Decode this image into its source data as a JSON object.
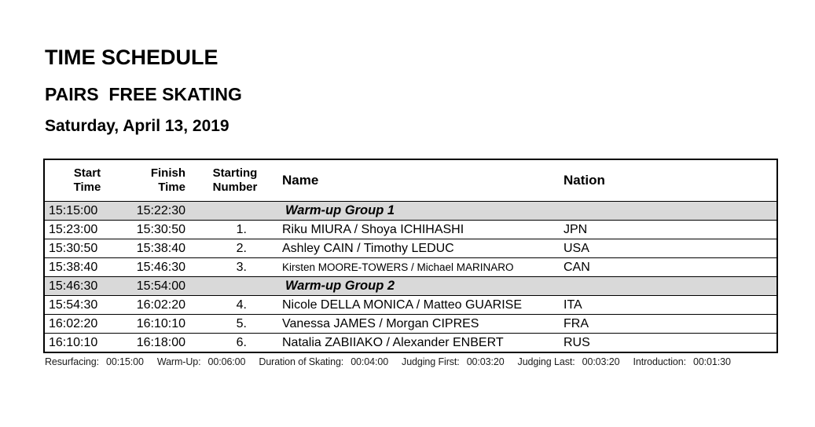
{
  "page": {
    "title": "TIME SCHEDULE",
    "subtitle": "PAIRS  FREE SKATING",
    "date": "Saturday, April 13, 2019"
  },
  "table": {
    "headers": {
      "start_time": [
        "Start",
        "Time"
      ],
      "finish_time": [
        "Finish",
        "Time"
      ],
      "starting_number": [
        "Starting",
        "Number"
      ],
      "name": "Name",
      "nation": "Nation"
    },
    "rows": [
      {
        "type": "group",
        "start": "15:15:00",
        "finish": "15:22:30",
        "label": "Warm-up Group 1"
      },
      {
        "type": "entry",
        "start": "15:23:00",
        "finish": "15:30:50",
        "number": "1.",
        "name": "Riku MIURA / Shoya ICHIHASHI",
        "nation": "JPN"
      },
      {
        "type": "entry",
        "start": "15:30:50",
        "finish": "15:38:40",
        "number": "2.",
        "name": "Ashley CAIN / Timothy LEDUC",
        "nation": "USA"
      },
      {
        "type": "entry",
        "start": "15:38:40",
        "finish": "15:46:30",
        "number": "3.",
        "name": "Kirsten MOORE-TOWERS / Michael MARINARO",
        "nation": "CAN",
        "small": true
      },
      {
        "type": "group",
        "start": "15:46:30",
        "finish": "15:54:00",
        "label": "Warm-up Group 2"
      },
      {
        "type": "entry",
        "start": "15:54:30",
        "finish": "16:02:20",
        "number": "4.",
        "name": "Nicole DELLA MONICA / Matteo GUARISE",
        "nation": "ITA"
      },
      {
        "type": "entry",
        "start": "16:02:20",
        "finish": "16:10:10",
        "number": "5.",
        "name": "Vanessa JAMES / Morgan CIPRES",
        "nation": "FRA"
      },
      {
        "type": "entry",
        "start": "16:10:10",
        "finish": "16:18:00",
        "number": "6.",
        "name": "Natalia ZABIIAKO / Alexander ENBERT",
        "nation": "RUS"
      }
    ]
  },
  "footer": {
    "items": [
      {
        "label": "Resurfacing:",
        "value": "00:15:00"
      },
      {
        "label": "Warm-Up:",
        "value": "00:06:00"
      },
      {
        "label": "Duration of Skating:",
        "value": "00:04:00"
      },
      {
        "label": "Judging First:",
        "value": "00:03:20"
      },
      {
        "label": "Judging Last:",
        "value": "00:03:20"
      },
      {
        "label": "Introduction:",
        "value": "00:01:30"
      }
    ]
  },
  "colors": {
    "group_row_bg": "#d9d9d9",
    "border": "#000000"
  }
}
